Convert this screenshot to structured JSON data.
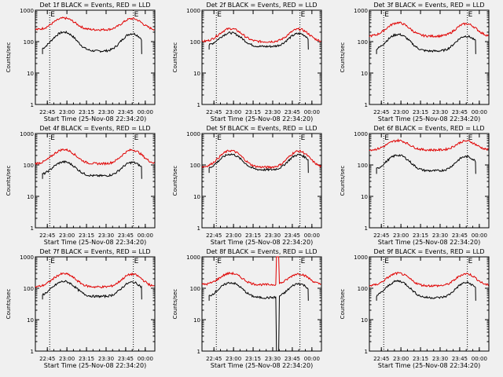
{
  "figure": {
    "background": "#f0f0f0",
    "event_color": "#000000",
    "lld_color": "#e00000"
  },
  "chart_data": [
    {
      "type": "line",
      "title": "Det 1f BLACK = Events, RED = LLD",
      "xlabel": "Start Time (25-Nov-08 22:34:20)",
      "ylabel": "Counts/sec",
      "y_scale": "log",
      "ylim": [
        1,
        1000
      ],
      "yticks": [
        1,
        10,
        100,
        1000
      ],
      "xticks": [
        "22:45",
        "23:00",
        "23:15",
        "23:30",
        "23:45",
        "00:00"
      ],
      "xlim": [
        0,
        100
      ],
      "markers": [
        {
          "label": "E",
          "x": 12
        },
        {
          "label": "E",
          "x": 82
        }
      ],
      "series": [
        {
          "name": "Events",
          "color": "#000000",
          "start": 6,
          "end": 89,
          "base": 50,
          "amp1": 150,
          "amp2": 130
        },
        {
          "name": "LLD",
          "color": "#e00000",
          "start": 0,
          "end": 100,
          "base": 240,
          "amp1": 320,
          "amp2": 300
        }
      ]
    },
    {
      "type": "line",
      "title": "Det 2f BLACK = Events, RED = LLD",
      "xlabel": "Start Time (25-Nov-08 22:34:20)",
      "ylabel": "Counts/sec",
      "y_scale": "log",
      "ylim": [
        1,
        1000
      ],
      "yticks": [
        1,
        10,
        100,
        1000
      ],
      "xticks": [
        "22:45",
        "23:00",
        "23:15",
        "23:30",
        "23:45",
        "00:00"
      ],
      "xlim": [
        0,
        100
      ],
      "markers": [
        {
          "label": "E",
          "x": 12
        },
        {
          "label": "E",
          "x": 82
        }
      ],
      "series": [
        {
          "name": "Events",
          "color": "#000000",
          "start": 6,
          "end": 89,
          "base": 70,
          "amp1": 120,
          "amp2": 110
        },
        {
          "name": "LLD",
          "color": "#e00000",
          "start": 0,
          "end": 100,
          "base": 100,
          "amp1": 160,
          "amp2": 150
        }
      ]
    },
    {
      "type": "line",
      "title": "Det 3f BLACK = Events, RED = LLD",
      "xlabel": "Start Time (25-Nov-08 22:34:20)",
      "ylabel": "Counts/sec",
      "y_scale": "log",
      "ylim": [
        1,
        1000
      ],
      "yticks": [
        1,
        10,
        100,
        1000
      ],
      "xticks": [
        "22:45",
        "23:00",
        "23:15",
        "23:30",
        "23:45",
        "00:00"
      ],
      "xlim": [
        0,
        100
      ],
      "markers": [
        {
          "label": "E",
          "x": 12
        },
        {
          "label": "E",
          "x": 82
        }
      ],
      "series": [
        {
          "name": "Events",
          "color": "#000000",
          "start": 6,
          "end": 89,
          "base": 50,
          "amp1": 120,
          "amp2": 100
        },
        {
          "name": "LLD",
          "color": "#e00000",
          "start": 0,
          "end": 100,
          "base": 150,
          "amp1": 250,
          "amp2": 220
        }
      ]
    },
    {
      "type": "line",
      "title": "Det 4f BLACK = Events, RED = LLD",
      "xlabel": "Start Time (25-Nov-08 22:34:20)",
      "ylabel": "Counts/sec",
      "y_scale": "log",
      "ylim": [
        1,
        1000
      ],
      "yticks": [
        1,
        10,
        100,
        1000
      ],
      "xticks": [
        "22:45",
        "23:00",
        "23:15",
        "23:30",
        "23:45",
        "00:00"
      ],
      "xlim": [
        0,
        100
      ],
      "markers": [
        {
          "label": "E",
          "x": 12
        },
        {
          "label": "E",
          "x": 82
        }
      ],
      "series": [
        {
          "name": "Events",
          "color": "#000000",
          "start": 6,
          "end": 89,
          "base": 45,
          "amp1": 80,
          "amp2": 75
        },
        {
          "name": "LLD",
          "color": "#e00000",
          "start": 0,
          "end": 100,
          "base": 110,
          "amp1": 200,
          "amp2": 190
        }
      ]
    },
    {
      "type": "line",
      "title": "Det 5f BLACK = Events, RED = LLD",
      "xlabel": "Start Time (25-Nov-08 22:34:20)",
      "ylabel": "Counts/sec",
      "y_scale": "log",
      "ylim": [
        1,
        1000
      ],
      "yticks": [
        1,
        10,
        100,
        1000
      ],
      "xticks": [
        "22:45",
        "23:00",
        "23:15",
        "23:30",
        "23:45",
        "00:00"
      ],
      "xlim": [
        0,
        100
      ],
      "markers": [
        {
          "label": "E",
          "x": 12
        },
        {
          "label": "E",
          "x": 82
        }
      ],
      "series": [
        {
          "name": "Events",
          "color": "#000000",
          "start": 6,
          "end": 89,
          "base": 70,
          "amp1": 150,
          "amp2": 140
        },
        {
          "name": "LLD",
          "color": "#e00000",
          "start": 0,
          "end": 100,
          "base": 85,
          "amp1": 200,
          "amp2": 190
        }
      ]
    },
    {
      "type": "line",
      "title": "Det 6f BLACK = Events, RED = LLD",
      "xlabel": "Start Time (25-Nov-08 22:34:20)",
      "ylabel": "Counts/sec",
      "y_scale": "log",
      "ylim": [
        1,
        1000
      ],
      "yticks": [
        1,
        10,
        100,
        1000
      ],
      "xticks": [
        "22:45",
        "23:00",
        "23:15",
        "23:30",
        "23:45",
        "00:00"
      ],
      "xlim": [
        0,
        100
      ],
      "markers": [
        {
          "label": "E",
          "x": 12
        },
        {
          "label": "E",
          "x": 82
        }
      ],
      "series": [
        {
          "name": "Events",
          "color": "#000000",
          "start": 6,
          "end": 89,
          "base": 65,
          "amp1": 140,
          "amp2": 120
        },
        {
          "name": "LLD",
          "color": "#e00000",
          "start": 0,
          "end": 100,
          "base": 300,
          "amp1": 300,
          "amp2": 280
        }
      ]
    },
    {
      "type": "line",
      "title": "Det 7f BLACK = Events, RED = LLD",
      "xlabel": "Start Time (25-Nov-08 22:34:20)",
      "ylabel": "Counts/sec",
      "y_scale": "log",
      "ylim": [
        1,
        1000
      ],
      "yticks": [
        1,
        10,
        100,
        1000
      ],
      "xticks": [
        "22:45",
        "23:00",
        "23:15",
        "23:30",
        "23:45",
        "00:00"
      ],
      "xlim": [
        0,
        100
      ],
      "markers": [
        {
          "label": "E",
          "x": 12
        },
        {
          "label": "E",
          "x": 82
        }
      ],
      "series": [
        {
          "name": "Events",
          "color": "#000000",
          "start": 6,
          "end": 89,
          "base": 55,
          "amp1": 110,
          "amp2": 100
        },
        {
          "name": "LLD",
          "color": "#e00000",
          "start": 0,
          "end": 100,
          "base": 110,
          "amp1": 180,
          "amp2": 170
        }
      ]
    },
    {
      "type": "line",
      "title": "Det 8f BLACK = Events, RED = LLD",
      "xlabel": "Start Time (25-Nov-08 22:34:20)",
      "ylabel": "Counts/sec",
      "y_scale": "log",
      "ylim": [
        1,
        1000
      ],
      "yticks": [
        1,
        10,
        100,
        1000
      ],
      "xticks": [
        "22:45",
        "23:00",
        "23:15",
        "23:30",
        "23:45",
        "00:00"
      ],
      "xlim": [
        0,
        100
      ],
      "markers": [
        {
          "label": "E",
          "x": 12
        },
        {
          "label": "E",
          "x": 82
        }
      ],
      "series": [
        {
          "name": "Events",
          "color": "#000000",
          "start": 6,
          "end": 89,
          "base": 50,
          "amp1": 100,
          "amp2": 90,
          "spike": {
            "x": [
              62,
              67
            ],
            "y": [
              1,
              3000
            ]
          }
        },
        {
          "name": "LLD",
          "color": "#e00000",
          "start": 0,
          "end": 100,
          "base": 130,
          "amp1": 170,
          "amp2": 160,
          "spike": {
            "x": [
              62,
              67
            ],
            "y": [
              1,
              3000
            ]
          }
        }
      ]
    },
    {
      "type": "line",
      "title": "Det 9f BLACK = Events, RED = LLD",
      "xlabel": "Start Time (25-Nov-08 22:34:20)",
      "ylabel": "Counts/sec",
      "y_scale": "log",
      "ylim": [
        1,
        1000
      ],
      "yticks": [
        1,
        10,
        100,
        1000
      ],
      "xticks": [
        "22:45",
        "23:00",
        "23:15",
        "23:30",
        "23:45",
        "00:00"
      ],
      "xlim": [
        0,
        100
      ],
      "markers": [
        {
          "label": "E",
          "x": 12
        },
        {
          "label": "E",
          "x": 82
        }
      ],
      "series": [
        {
          "name": "Events",
          "color": "#000000",
          "start": 6,
          "end": 89,
          "base": 50,
          "amp1": 120,
          "amp2": 100
        },
        {
          "name": "LLD",
          "color": "#e00000",
          "start": 0,
          "end": 100,
          "base": 120,
          "amp1": 180,
          "amp2": 170
        }
      ]
    }
  ]
}
